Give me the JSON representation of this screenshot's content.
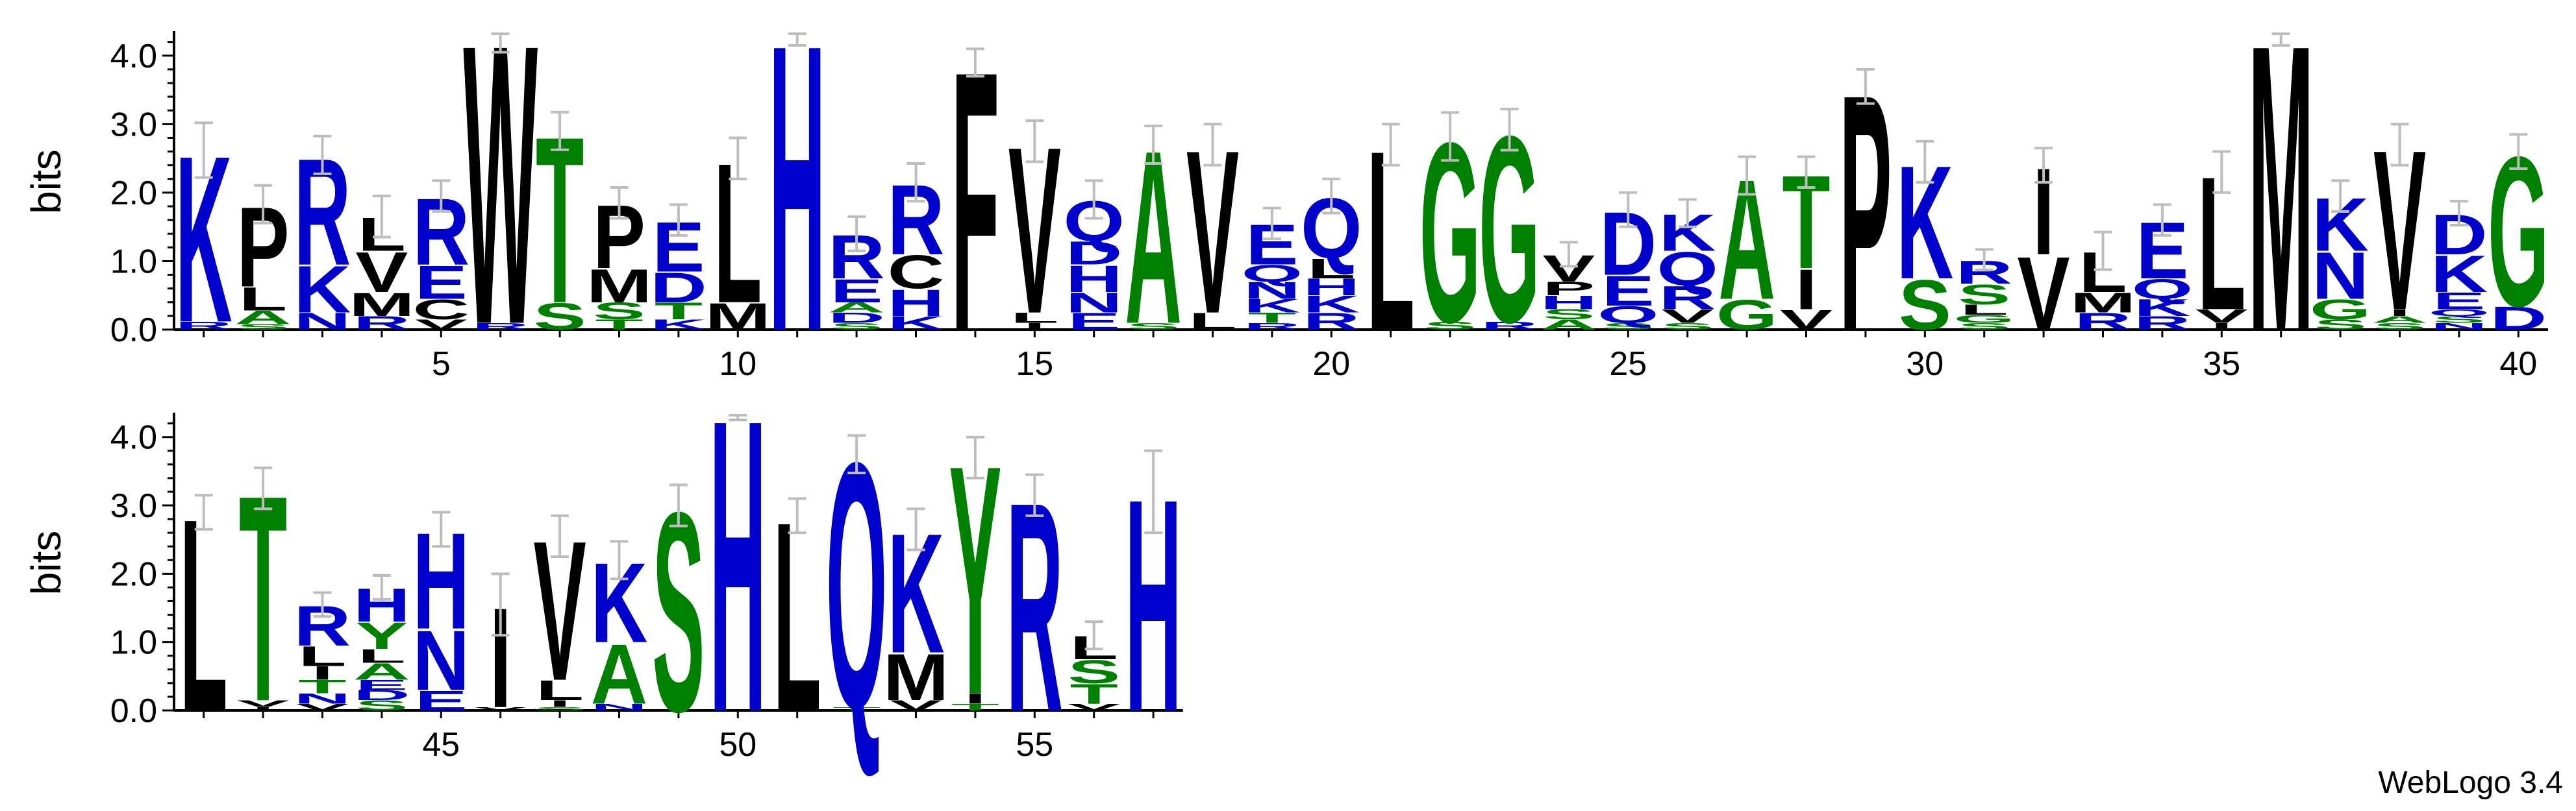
{
  "credit": "WebLogo 3.4",
  "colors": {
    "hydrophobic": "#000000",
    "polar": "#008000",
    "basic_acidic": "#0000cc",
    "errorbar": "#bdbdbd"
  },
  "chart_data": {
    "type": "sequence-logo",
    "ylabel": "bits",
    "ylim": [
      0,
      4.32
    ],
    "yticks": [
      "0.0",
      "1.0",
      "2.0",
      "3.0",
      "4.0"
    ],
    "rows": [
      {
        "start": 1,
        "end": 40,
        "xticks": [
          "5",
          "10",
          "15",
          "20",
          "25",
          "30",
          "35",
          "40"
        ]
      },
      {
        "start": 41,
        "end": 57,
        "xticks": [
          "45",
          "50",
          "55"
        ]
      }
    ],
    "columns": [
      {
        "pos": 1,
        "err": 0.8,
        "letters": [
          {
            "aa": "R",
            "h": 0.12
          },
          {
            "aa": "K",
            "h": 2.5
          }
        ]
      },
      {
        "pos": 2,
        "err": 0.55,
        "letters": [
          {
            "aa": "S",
            "h": 0.08
          },
          {
            "aa": "A",
            "h": 0.2
          },
          {
            "aa": "L",
            "h": 0.35
          },
          {
            "aa": "P",
            "h": 1.2
          }
        ]
      },
      {
        "pos": 3,
        "err": 0.55,
        "letters": [
          {
            "aa": "N",
            "h": 0.25
          },
          {
            "aa": "K",
            "h": 0.7
          },
          {
            "aa": "R",
            "h": 1.6
          }
        ]
      },
      {
        "pos": 4,
        "err": 0.6,
        "letters": [
          {
            "aa": "R",
            "h": 0.2
          },
          {
            "aa": "M",
            "h": 0.35
          },
          {
            "aa": "V",
            "h": 0.6
          },
          {
            "aa": "L",
            "h": 0.5
          }
        ]
      },
      {
        "pos": 5,
        "err": 0.45,
        "letters": [
          {
            "aa": "V",
            "h": 0.15
          },
          {
            "aa": "C",
            "h": 0.3
          },
          {
            "aa": "E",
            "h": 0.5
          },
          {
            "aa": "R",
            "h": 1.0
          }
        ]
      },
      {
        "pos": 6,
        "err": 0.5,
        "letters": [
          {
            "aa": "R",
            "h": 0.1
          },
          {
            "aa": "W",
            "h": 4.2
          }
        ]
      },
      {
        "pos": 7,
        "err": 0.55,
        "letters": [
          {
            "aa": "S",
            "h": 0.4
          },
          {
            "aa": "T",
            "h": 2.5
          }
        ]
      },
      {
        "pos": 8,
        "err": 0.45,
        "letters": [
          {
            "aa": "T",
            "h": 0.15
          },
          {
            "aa": "S",
            "h": 0.25
          },
          {
            "aa": "M",
            "h": 0.5
          },
          {
            "aa": "P",
            "h": 0.95
          }
        ]
      },
      {
        "pos": 9,
        "err": 0.45,
        "letters": [
          {
            "aa": "K",
            "h": 0.15
          },
          {
            "aa": "T",
            "h": 0.25
          },
          {
            "aa": "D",
            "h": 0.45
          },
          {
            "aa": "E",
            "h": 0.75
          }
        ]
      },
      {
        "pos": 10,
        "err": 0.6,
        "letters": [
          {
            "aa": "M",
            "h": 0.4
          },
          {
            "aa": "L",
            "h": 2.1
          }
        ]
      },
      {
        "pos": 11,
        "err": 0.3,
        "letters": [
          {
            "aa": "H",
            "h": 4.3
          }
        ]
      },
      {
        "pos": 12,
        "err": 0.5,
        "letters": [
          {
            "aa": "S",
            "h": 0.1
          },
          {
            "aa": "D",
            "h": 0.15
          },
          {
            "aa": "A",
            "h": 0.15
          },
          {
            "aa": "E",
            "h": 0.35
          },
          {
            "aa": "R",
            "h": 0.65
          }
        ]
      },
      {
        "pos": 13,
        "err": 0.55,
        "letters": [
          {
            "aa": "K",
            "h": 0.2
          },
          {
            "aa": "H",
            "h": 0.4
          },
          {
            "aa": "C",
            "h": 0.5
          },
          {
            "aa": "R",
            "h": 1.05
          }
        ]
      },
      {
        "pos": 14,
        "err": 0.4,
        "letters": [
          {
            "aa": "F",
            "h": 3.9
          }
        ]
      },
      {
        "pos": 15,
        "err": 0.6,
        "letters": [
          {
            "aa": "I",
            "h": 0.1
          },
          {
            "aa": "L",
            "h": 0.15
          },
          {
            "aa": "V",
            "h": 2.5
          }
        ]
      },
      {
        "pos": 16,
        "err": 0.55,
        "letters": [
          {
            "aa": "E",
            "h": 0.25
          },
          {
            "aa": "N",
            "h": 0.3
          },
          {
            "aa": "H",
            "h": 0.4
          },
          {
            "aa": "D",
            "h": 0.35
          },
          {
            "aa": "Q",
            "h": 0.6
          }
        ]
      },
      {
        "pos": 17,
        "err": 0.55,
        "letters": [
          {
            "aa": "S",
            "h": 0.1
          },
          {
            "aa": "A",
            "h": 2.6
          }
        ]
      },
      {
        "pos": 18,
        "err": 0.6,
        "letters": [
          {
            "aa": "L",
            "h": 0.25
          },
          {
            "aa": "V",
            "h": 2.45
          }
        ]
      },
      {
        "pos": 19,
        "err": 0.45,
        "letters": [
          {
            "aa": "R",
            "h": 0.1
          },
          {
            "aa": "T",
            "h": 0.15
          },
          {
            "aa": "K",
            "h": 0.2
          },
          {
            "aa": "N",
            "h": 0.25
          },
          {
            "aa": "Q",
            "h": 0.25
          },
          {
            "aa": "E",
            "h": 0.6
          }
        ]
      },
      {
        "pos": 20,
        "err": 0.5,
        "letters": [
          {
            "aa": "R",
            "h": 0.25
          },
          {
            "aa": "K",
            "h": 0.25
          },
          {
            "aa": "H",
            "h": 0.25
          },
          {
            "aa": "L",
            "h": 0.3
          },
          {
            "aa": "Q",
            "h": 0.9
          }
        ]
      },
      {
        "pos": 21,
        "err": 0.6,
        "letters": [
          {
            "aa": "L",
            "h": 2.7
          }
        ]
      },
      {
        "pos": 22,
        "err": 0.7,
        "letters": [
          {
            "aa": "S",
            "h": 0.12
          },
          {
            "aa": "G",
            "h": 2.7
          }
        ]
      },
      {
        "pos": 23,
        "err": 0.6,
        "letters": [
          {
            "aa": "R",
            "h": 0.12
          },
          {
            "aa": "G",
            "h": 2.8
          }
        ]
      },
      {
        "pos": 24,
        "err": 0.35,
        "letters": [
          {
            "aa": "A",
            "h": 0.15
          },
          {
            "aa": "S",
            "h": 0.15
          },
          {
            "aa": "H",
            "h": 0.2
          },
          {
            "aa": "P",
            "h": 0.2
          },
          {
            "aa": "V",
            "h": 0.4
          }
        ]
      },
      {
        "pos": 25,
        "err": 0.5,
        "letters": [
          {
            "aa": "S",
            "h": 0.1
          },
          {
            "aa": "Q",
            "h": 0.25
          },
          {
            "aa": "E",
            "h": 0.45
          },
          {
            "aa": "D",
            "h": 0.95
          }
        ]
      },
      {
        "pos": 26,
        "err": 0.4,
        "letters": [
          {
            "aa": "S",
            "h": 0.1
          },
          {
            "aa": "V",
            "h": 0.2
          },
          {
            "aa": "R",
            "h": 0.35
          },
          {
            "aa": "Q",
            "h": 0.5
          },
          {
            "aa": "K",
            "h": 0.55
          }
        ]
      },
      {
        "pos": 27,
        "err": 0.55,
        "letters": [
          {
            "aa": "G",
            "h": 0.45
          },
          {
            "aa": "A",
            "h": 1.8
          }
        ]
      },
      {
        "pos": 28,
        "err": 0.45,
        "letters": [
          {
            "aa": "V",
            "h": 0.3
          },
          {
            "aa": "I",
            "h": 0.6
          },
          {
            "aa": "T",
            "h": 1.4
          }
        ]
      },
      {
        "pos": 29,
        "err": 0.5,
        "letters": [
          {
            "aa": "P",
            "h": 3.55
          }
        ]
      },
      {
        "pos": 30,
        "err": 0.6,
        "letters": [
          {
            "aa": "S",
            "h": 0.75
          },
          {
            "aa": "K",
            "h": 1.7
          }
        ]
      },
      {
        "pos": 31,
        "err": 0.3,
        "letters": [
          {
            "aa": "S",
            "h": 0.1
          },
          {
            "aa": "G",
            "h": 0.12
          },
          {
            "aa": "L",
            "h": 0.15
          },
          {
            "aa": "S",
            "h": 0.3
          },
          {
            "aa": "R",
            "h": 0.35
          }
        ]
      },
      {
        "pos": 32,
        "err": 0.5,
        "letters": [
          {
            "aa": "V",
            "h": 1.1
          },
          {
            "aa": "I",
            "h": 1.3
          }
        ]
      },
      {
        "pos": 33,
        "err": 0.55,
        "letters": [
          {
            "aa": "R",
            "h": 0.25
          },
          {
            "aa": "M",
            "h": 0.3
          },
          {
            "aa": "L",
            "h": 0.6
          }
        ]
      },
      {
        "pos": 34,
        "err": 0.45,
        "letters": [
          {
            "aa": "R",
            "h": 0.2
          },
          {
            "aa": "K",
            "h": 0.25
          },
          {
            "aa": "Q",
            "h": 0.3
          },
          {
            "aa": "E",
            "h": 0.85
          }
        ]
      },
      {
        "pos": 35,
        "err": 0.6,
        "letters": [
          {
            "aa": "I",
            "h": 0.1
          },
          {
            "aa": "V",
            "h": 0.2
          },
          {
            "aa": "L",
            "h": 2.0
          }
        ]
      },
      {
        "pos": 36,
        "err": 0.3,
        "letters": [
          {
            "aa": "M",
            "h": 4.3
          }
        ]
      },
      {
        "pos": 37,
        "err": 0.45,
        "letters": [
          {
            "aa": "S",
            "h": 0.15
          },
          {
            "aa": "G",
            "h": 0.3
          },
          {
            "aa": "N",
            "h": 0.7
          },
          {
            "aa": "K",
            "h": 0.8
          }
        ]
      },
      {
        "pos": 38,
        "err": 0.6,
        "letters": [
          {
            "aa": "S",
            "h": 0.1
          },
          {
            "aa": "A",
            "h": 0.1
          },
          {
            "aa": "I",
            "h": 0.1
          },
          {
            "aa": "V",
            "h": 2.4
          }
        ]
      },
      {
        "pos": 39,
        "err": 0.35,
        "letters": [
          {
            "aa": "N",
            "h": 0.1
          },
          {
            "aa": "S",
            "h": 0.1
          },
          {
            "aa": "Q",
            "h": 0.1
          },
          {
            "aa": "E",
            "h": 0.25
          },
          {
            "aa": "K",
            "h": 0.55
          },
          {
            "aa": "D",
            "h": 0.6
          }
        ]
      },
      {
        "pos": 40,
        "err": 0.5,
        "letters": [
          {
            "aa": "D",
            "h": 0.35
          },
          {
            "aa": "G",
            "h": 2.25
          }
        ]
      },
      {
        "pos": 41,
        "err": 0.5,
        "letters": [
          {
            "aa": "L",
            "h": 2.9
          }
        ]
      },
      {
        "pos": 42,
        "err": 0.6,
        "letters": [
          {
            "aa": "I",
            "h": 0.05
          },
          {
            "aa": "V",
            "h": 0.1
          },
          {
            "aa": "T",
            "h": 3.1
          }
        ]
      },
      {
        "pos": 43,
        "err": 0.35,
        "letters": [
          {
            "aa": "V",
            "h": 0.1
          },
          {
            "aa": "N",
            "h": 0.15
          },
          {
            "aa": "T",
            "h": 0.2
          },
          {
            "aa": "I",
            "h": 0.2
          },
          {
            "aa": "L",
            "h": 0.3
          },
          {
            "aa": "R",
            "h": 0.6
          }
        ]
      },
      {
        "pos": 44,
        "err": 0.35,
        "letters": [
          {
            "aa": "S",
            "h": 0.15
          },
          {
            "aa": "D",
            "h": 0.15
          },
          {
            "aa": "E",
            "h": 0.15
          },
          {
            "aa": "A",
            "h": 0.25
          },
          {
            "aa": "L",
            "h": 0.2
          },
          {
            "aa": "Y",
            "h": 0.4
          },
          {
            "aa": "H",
            "h": 0.5
          }
        ]
      },
      {
        "pos": 45,
        "err": 0.5,
        "letters": [
          {
            "aa": "E",
            "h": 0.3
          },
          {
            "aa": "N",
            "h": 0.9
          },
          {
            "aa": "H",
            "h": 1.45
          }
        ]
      },
      {
        "pos": 46,
        "err": 0.9,
        "letters": [
          {
            "aa": "V",
            "h": 0.05
          },
          {
            "aa": "I",
            "h": 1.5
          }
        ]
      },
      {
        "pos": 47,
        "err": 0.6,
        "letters": [
          {
            "aa": "S",
            "h": 0.05
          },
          {
            "aa": "I",
            "h": 0.1
          },
          {
            "aa": "L",
            "h": 0.3
          },
          {
            "aa": "V",
            "h": 2.1
          }
        ]
      },
      {
        "pos": 48,
        "err": 0.55,
        "letters": [
          {
            "aa": "N",
            "h": 0.1
          },
          {
            "aa": "A",
            "h": 0.9
          },
          {
            "aa": "K",
            "h": 1.2
          }
        ]
      },
      {
        "pos": 49,
        "err": 0.6,
        "letters": [
          {
            "aa": "S",
            "h": 3.0
          }
        ]
      },
      {
        "pos": 50,
        "err": 0.3,
        "letters": [
          {
            "aa": "H",
            "h": 4.4
          }
        ]
      },
      {
        "pos": 51,
        "err": 0.5,
        "letters": [
          {
            "aa": "L",
            "h": 2.85
          }
        ]
      },
      {
        "pos": 52,
        "err": 0.55,
        "letters": [
          {
            "aa": "T",
            "h": 0.05
          },
          {
            "aa": "Q",
            "h": 3.7
          }
        ]
      },
      {
        "pos": 53,
        "err": 0.6,
        "letters": [
          {
            "aa": "V",
            "h": 0.15
          },
          {
            "aa": "M",
            "h": 0.7
          },
          {
            "aa": "K",
            "h": 1.8
          }
        ]
      },
      {
        "pos": 54,
        "err": 0.6,
        "letters": [
          {
            "aa": "T",
            "h": 0.1
          },
          {
            "aa": "I",
            "h": 0.15
          },
          {
            "aa": "Y",
            "h": 3.45
          }
        ]
      },
      {
        "pos": 55,
        "err": 0.6,
        "letters": [
          {
            "aa": "R",
            "h": 3.15
          }
        ]
      },
      {
        "pos": 56,
        "err": 0.4,
        "letters": [
          {
            "aa": "V",
            "h": 0.1
          },
          {
            "aa": "T",
            "h": 0.3
          },
          {
            "aa": "S",
            "h": 0.35
          },
          {
            "aa": "L",
            "h": 0.35
          }
        ]
      },
      {
        "pos": 57,
        "err": 1.2,
        "letters": [
          {
            "aa": "H",
            "h": 3.2
          }
        ]
      }
    ]
  }
}
